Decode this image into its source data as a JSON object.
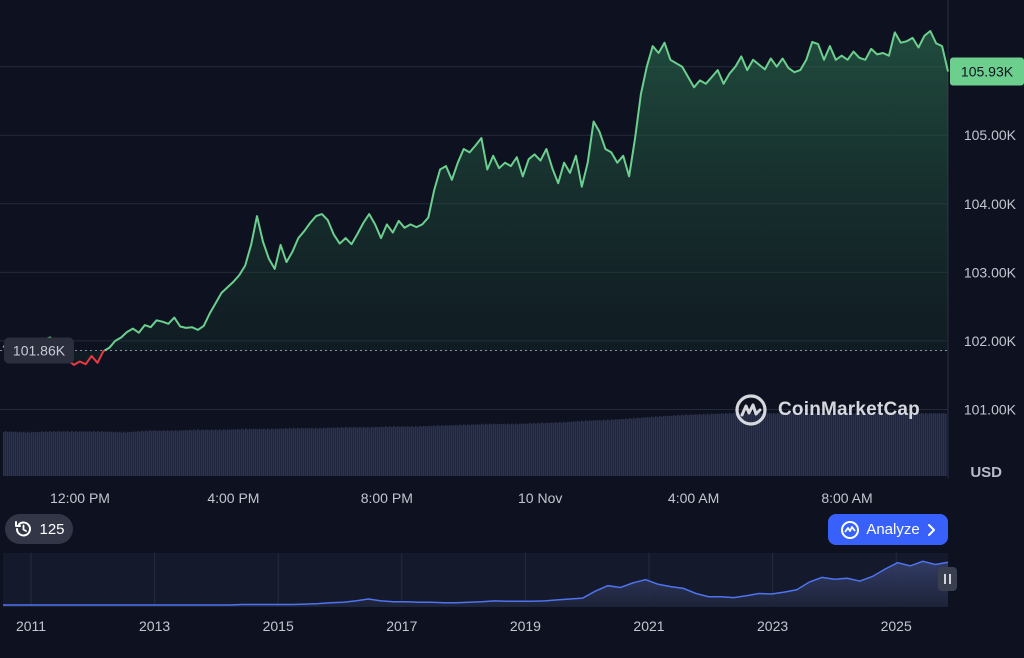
{
  "brand": {
    "name": "CoinMarketCap",
    "logo_icon": "coinmarketcap-logo-icon"
  },
  "controls": {
    "history_count": "125",
    "history_icon": "history-clock-icon",
    "analyze_label": "Analyze",
    "analyze_icon": "analyze-chart-icon",
    "pause_icon": "pause-icon"
  },
  "currency_label": "USD",
  "colors": {
    "up_line": "#6ccf8e",
    "down_line": "#ea3943",
    "volume": "#2c3352",
    "overview_line": "#4f73f0",
    "analyze_button": "#3861fb",
    "last_price_badge": "#6ccf8e"
  },
  "chart_data": {
    "type": "line",
    "y_axis": {
      "ticks": [
        "101.00K",
        "102.00K",
        "103.00K",
        "104.00K",
        "105.00K"
      ],
      "unit": "USD",
      "ylim": [
        100.0,
        106.9
      ]
    },
    "x_axis": {
      "ticks": [
        "12:00 PM",
        "4:00 PM",
        "8:00 PM",
        "10 Nov",
        "4:00 AM",
        "8:00 AM"
      ]
    },
    "reference_price": {
      "value": 101.86,
      "label": "101.86K"
    },
    "last_price": {
      "value": 105.93,
      "label": "105.93K"
    },
    "series": [
      {
        "values": [
          101.92,
          101.9,
          101.95,
          101.92,
          101.93,
          101.97,
          102.0,
          102.02,
          102.05,
          101.8,
          101.7,
          101.72,
          101.65,
          101.7,
          101.66,
          101.78,
          101.68,
          101.85,
          101.9,
          102.0,
          102.05,
          102.13,
          102.18,
          102.12,
          102.23,
          102.2,
          102.3,
          102.28,
          102.25,
          102.34,
          102.21,
          102.19,
          102.2,
          102.16,
          102.22,
          102.4,
          102.55,
          102.7,
          102.78,
          102.86,
          102.96,
          103.1,
          103.4,
          103.82,
          103.45,
          103.2,
          103.05,
          103.4,
          103.15,
          103.3,
          103.5,
          103.6,
          103.72,
          103.82,
          103.85,
          103.76,
          103.55,
          103.42,
          103.5,
          103.41,
          103.56,
          103.72,
          103.85,
          103.7,
          103.5,
          103.7,
          103.58,
          103.75,
          103.65,
          103.7,
          103.66,
          103.7,
          103.8,
          104.2,
          104.5,
          104.55,
          104.35,
          104.6,
          104.8,
          104.75,
          104.85,
          104.96,
          104.5,
          104.7,
          104.52,
          104.6,
          104.55,
          104.68,
          104.4,
          104.65,
          104.72,
          104.63,
          104.8,
          104.52,
          104.3,
          104.6,
          104.45,
          104.7,
          104.25,
          104.6,
          105.2,
          105.05,
          104.8,
          104.75,
          104.6,
          104.7,
          104.4,
          104.95,
          105.6,
          106.0,
          106.3,
          106.2,
          106.35,
          106.1,
          106.05,
          106.0,
          105.85,
          105.7,
          105.8,
          105.75,
          105.85,
          105.95,
          105.75,
          105.9,
          106.0,
          106.15,
          105.95,
          106.1,
          106.03,
          105.96,
          106.12,
          106.0,
          106.12,
          105.98,
          105.92,
          105.95,
          106.1,
          106.36,
          106.33,
          106.1,
          106.3,
          106.1,
          106.16,
          106.1,
          106.22,
          106.13,
          106.1,
          106.26,
          106.18,
          106.2,
          106.16,
          106.5,
          106.35,
          106.37,
          106.42,
          106.28,
          106.45,
          106.52,
          106.34,
          106.3,
          105.93
        ]
      }
    ],
    "volume_profile": [
      0.54,
      0.53,
      0.54,
      0.54,
      0.54,
      0.53,
      0.55,
      0.55,
      0.56,
      0.56,
      0.57,
      0.57,
      0.58,
      0.58,
      0.59,
      0.59,
      0.6,
      0.6,
      0.61,
      0.62,
      0.63,
      0.63,
      0.64,
      0.65,
      0.67,
      0.68,
      0.7,
      0.72,
      0.74,
      0.75,
      0.76,
      0.76,
      0.76,
      0.76,
      0.76,
      0.76,
      0.76,
      0.76,
      0.76,
      0.76
    ],
    "overview": {
      "type": "area",
      "x_ticks": [
        "2011",
        "2013",
        "2015",
        "2017",
        "2019",
        "2021",
        "2023",
        "2025"
      ],
      "values": [
        0,
        0,
        0,
        0,
        0,
        0,
        0,
        0,
        0,
        0,
        0,
        0,
        0,
        0,
        0,
        0,
        0,
        0,
        0,
        0.01,
        0.01,
        0.01,
        0.01,
        0.01,
        0.02,
        0.03,
        0.05,
        0.06,
        0.09,
        0.13,
        0.09,
        0.07,
        0.07,
        0.06,
        0.06,
        0.05,
        0.05,
        0.06,
        0.07,
        0.09,
        0.08,
        0.08,
        0.08,
        0.09,
        0.11,
        0.13,
        0.15,
        0.3,
        0.42,
        0.38,
        0.48,
        0.55,
        0.45,
        0.4,
        0.36,
        0.25,
        0.18,
        0.18,
        0.16,
        0.2,
        0.25,
        0.24,
        0.28,
        0.33,
        0.5,
        0.6,
        0.56,
        0.58,
        0.52,
        0.62,
        0.78,
        0.92,
        0.85,
        0.95,
        0.88,
        0.93
      ]
    }
  }
}
